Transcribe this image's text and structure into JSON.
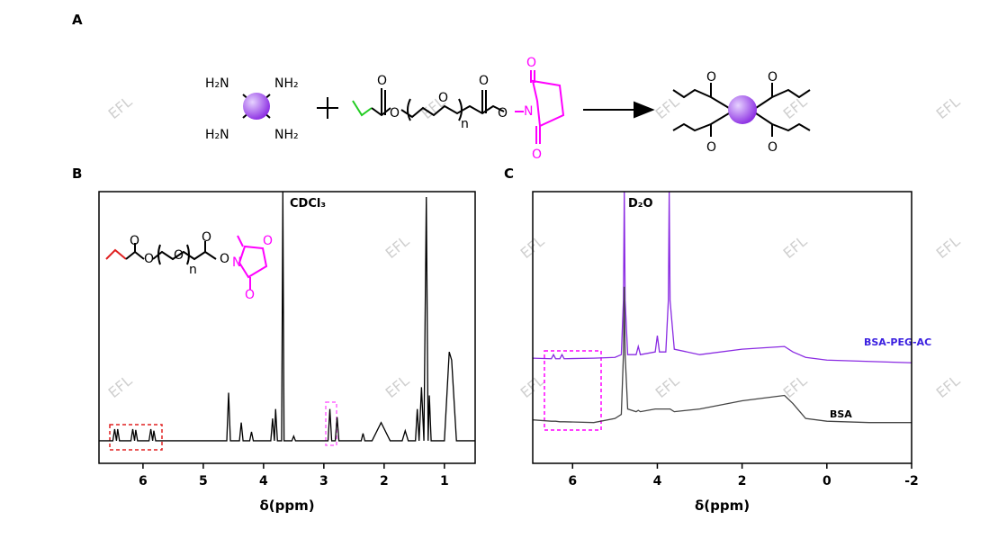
{
  "panels": [
    "A",
    "B",
    "C"
  ],
  "watermark": "EFL",
  "scheme": {
    "labels": [
      "H₂N",
      "NH₂",
      "H₂N",
      "NH₂",
      "O",
      "O",
      "O",
      "n",
      "O",
      "O",
      "N",
      "O",
      "O",
      "O",
      "O",
      "O",
      "O"
    ]
  },
  "inset": {
    "labels": [
      "O",
      "O",
      "O",
      "n",
      "O",
      "O",
      "N",
      "O",
      "O"
    ]
  },
  "chart_data": [
    {
      "type": "line",
      "color": "#000000",
      "annotation": "CDCl₃",
      "x_label": "δ(ppm)",
      "xlim": [
        6.73,
        0.49
      ],
      "ylim": [
        0,
        100
      ],
      "xticks": [
        6,
        5,
        4,
        3,
        2,
        1
      ],
      "x": [
        6.73,
        6.5,
        6.47,
        6.44,
        6.42,
        6.39,
        6.2,
        6.17,
        6.14,
        6.12,
        6.09,
        5.9,
        5.87,
        5.84,
        5.82,
        5.79,
        4.61,
        4.58,
        4.55,
        4.4,
        4.37,
        4.34,
        4.23,
        4.2,
        4.17,
        3.88,
        3.85,
        3.82,
        3.8,
        3.77,
        3.7,
        3.68,
        3.66,
        3.53,
        3.5,
        3.47,
        2.93,
        2.9,
        2.87,
        2.81,
        2.78,
        2.75,
        2.38,
        2.35,
        2.32,
        2.2,
        2.05,
        1.9,
        1.7,
        1.65,
        1.6,
        1.48,
        1.45,
        1.42,
        1.38,
        1.34,
        1.3,
        1.27,
        1.25,
        1.22,
        1.0,
        0.92,
        0.88,
        0.8,
        0.49
      ],
      "values": [
        8.3,
        8.3,
        12.6,
        8.3,
        12.6,
        8.3,
        8.3,
        12.6,
        8.3,
        12.3,
        8.3,
        8.3,
        12.6,
        8.3,
        12,
        8.3,
        8.3,
        26,
        8.3,
        8.3,
        15,
        8.3,
        8.3,
        11.6,
        8.3,
        8.3,
        16.5,
        8.3,
        20,
        8.3,
        8.3,
        100,
        8.3,
        8.3,
        10,
        8.3,
        8.3,
        20,
        8.3,
        8.3,
        17,
        8.3,
        8.3,
        11,
        8.3,
        8.3,
        15,
        8.3,
        8.3,
        12,
        8.3,
        8.3,
        20,
        8.3,
        28,
        8.3,
        98,
        8.3,
        25,
        8.3,
        8.3,
        41,
        38,
        8.3,
        8.3
      ]
    },
    {
      "type": "line",
      "annotation": "D₂O",
      "x_label": "δ(ppm)",
      "xlim": [
        6.94,
        -2
      ],
      "ylim": [
        0,
        100
      ],
      "xticks": [
        6,
        4,
        2,
        0,
        -2
      ],
      "x": [
        6.94,
        6.5,
        6.45,
        6.4,
        6.3,
        6.25,
        6.2,
        5.5,
        5.0,
        4.85,
        4.8,
        4.78,
        4.76,
        4.7,
        4.5,
        4.45,
        4.4,
        4.05,
        4.0,
        3.95,
        3.8,
        3.74,
        3.72,
        3.7,
        3.6,
        3.0,
        2.0,
        1.0,
        0.8,
        0.5,
        0,
        -1,
        -2
      ],
      "series": [
        {
          "name": "BSA-PEG-AC",
          "color": "#8a2be2",
          "label_color": "#3a1fe0",
          "values": [
            38.7,
            38.5,
            40,
            38.5,
            38.5,
            40,
            38.5,
            38.7,
            39,
            40,
            60,
            100,
            60,
            40,
            40,
            43,
            40,
            41,
            47,
            41,
            41,
            60,
            100,
            60,
            42,
            40,
            42,
            43,
            41,
            39,
            38,
            37.5,
            37
          ]
        },
        {
          "name": "BSA",
          "color": "#444444",
          "label_color": "#000000",
          "values": [
            16,
            15.5,
            15.5,
            15.5,
            15.3,
            15.3,
            15.3,
            15,
            16.5,
            18,
            40,
            65,
            40,
            20,
            19,
            19.5,
            19,
            20,
            20,
            20,
            20,
            20,
            20,
            20,
            19,
            20,
            23,
            25,
            22,
            16.5,
            15.5,
            15,
            15
          ]
        }
      ]
    }
  ]
}
